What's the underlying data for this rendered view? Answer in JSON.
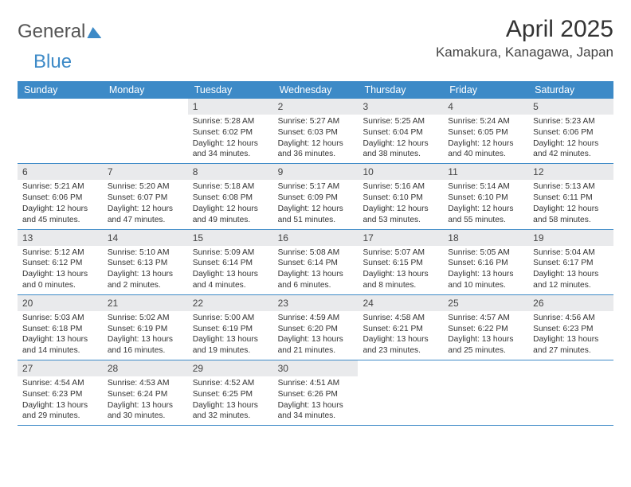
{
  "brand": {
    "part1": "General",
    "part2": "Blue"
  },
  "title": "April 2025",
  "location": "Kamakura, Kanagawa, Japan",
  "colors": {
    "header_bg": "#3d8ac7",
    "header_text": "#ffffff",
    "daynum_bg": "#e9eaec",
    "row_border": "#3d8ac7",
    "body_text": "#333333"
  },
  "day_names": [
    "Sunday",
    "Monday",
    "Tuesday",
    "Wednesday",
    "Thursday",
    "Friday",
    "Saturday"
  ],
  "weeks": [
    [
      {
        "empty": true
      },
      {
        "empty": true
      },
      {
        "n": "1",
        "sr": "5:28 AM",
        "ss": "6:02 PM",
        "dl": "12 hours and 34 minutes."
      },
      {
        "n": "2",
        "sr": "5:27 AM",
        "ss": "6:03 PM",
        "dl": "12 hours and 36 minutes."
      },
      {
        "n": "3",
        "sr": "5:25 AM",
        "ss": "6:04 PM",
        "dl": "12 hours and 38 minutes."
      },
      {
        "n": "4",
        "sr": "5:24 AM",
        "ss": "6:05 PM",
        "dl": "12 hours and 40 minutes."
      },
      {
        "n": "5",
        "sr": "5:23 AM",
        "ss": "6:06 PM",
        "dl": "12 hours and 42 minutes."
      }
    ],
    [
      {
        "n": "6",
        "sr": "5:21 AM",
        "ss": "6:06 PM",
        "dl": "12 hours and 45 minutes."
      },
      {
        "n": "7",
        "sr": "5:20 AM",
        "ss": "6:07 PM",
        "dl": "12 hours and 47 minutes."
      },
      {
        "n": "8",
        "sr": "5:18 AM",
        "ss": "6:08 PM",
        "dl": "12 hours and 49 minutes."
      },
      {
        "n": "9",
        "sr": "5:17 AM",
        "ss": "6:09 PM",
        "dl": "12 hours and 51 minutes."
      },
      {
        "n": "10",
        "sr": "5:16 AM",
        "ss": "6:10 PM",
        "dl": "12 hours and 53 minutes."
      },
      {
        "n": "11",
        "sr": "5:14 AM",
        "ss": "6:10 PM",
        "dl": "12 hours and 55 minutes."
      },
      {
        "n": "12",
        "sr": "5:13 AM",
        "ss": "6:11 PM",
        "dl": "12 hours and 58 minutes."
      }
    ],
    [
      {
        "n": "13",
        "sr": "5:12 AM",
        "ss": "6:12 PM",
        "dl": "13 hours and 0 minutes."
      },
      {
        "n": "14",
        "sr": "5:10 AM",
        "ss": "6:13 PM",
        "dl": "13 hours and 2 minutes."
      },
      {
        "n": "15",
        "sr": "5:09 AM",
        "ss": "6:14 PM",
        "dl": "13 hours and 4 minutes."
      },
      {
        "n": "16",
        "sr": "5:08 AM",
        "ss": "6:14 PM",
        "dl": "13 hours and 6 minutes."
      },
      {
        "n": "17",
        "sr": "5:07 AM",
        "ss": "6:15 PM",
        "dl": "13 hours and 8 minutes."
      },
      {
        "n": "18",
        "sr": "5:05 AM",
        "ss": "6:16 PM",
        "dl": "13 hours and 10 minutes."
      },
      {
        "n": "19",
        "sr": "5:04 AM",
        "ss": "6:17 PM",
        "dl": "13 hours and 12 minutes."
      }
    ],
    [
      {
        "n": "20",
        "sr": "5:03 AM",
        "ss": "6:18 PM",
        "dl": "13 hours and 14 minutes."
      },
      {
        "n": "21",
        "sr": "5:02 AM",
        "ss": "6:19 PM",
        "dl": "13 hours and 16 minutes."
      },
      {
        "n": "22",
        "sr": "5:00 AM",
        "ss": "6:19 PM",
        "dl": "13 hours and 19 minutes."
      },
      {
        "n": "23",
        "sr": "4:59 AM",
        "ss": "6:20 PM",
        "dl": "13 hours and 21 minutes."
      },
      {
        "n": "24",
        "sr": "4:58 AM",
        "ss": "6:21 PM",
        "dl": "13 hours and 23 minutes."
      },
      {
        "n": "25",
        "sr": "4:57 AM",
        "ss": "6:22 PM",
        "dl": "13 hours and 25 minutes."
      },
      {
        "n": "26",
        "sr": "4:56 AM",
        "ss": "6:23 PM",
        "dl": "13 hours and 27 minutes."
      }
    ],
    [
      {
        "n": "27",
        "sr": "4:54 AM",
        "ss": "6:23 PM",
        "dl": "13 hours and 29 minutes."
      },
      {
        "n": "28",
        "sr": "4:53 AM",
        "ss": "6:24 PM",
        "dl": "13 hours and 30 minutes."
      },
      {
        "n": "29",
        "sr": "4:52 AM",
        "ss": "6:25 PM",
        "dl": "13 hours and 32 minutes."
      },
      {
        "n": "30",
        "sr": "4:51 AM",
        "ss": "6:26 PM",
        "dl": "13 hours and 34 minutes."
      },
      {
        "empty": true
      },
      {
        "empty": true
      },
      {
        "empty": true
      }
    ]
  ],
  "labels": {
    "sunrise": "Sunrise: ",
    "sunset": "Sunset: ",
    "daylight": "Daylight: "
  }
}
